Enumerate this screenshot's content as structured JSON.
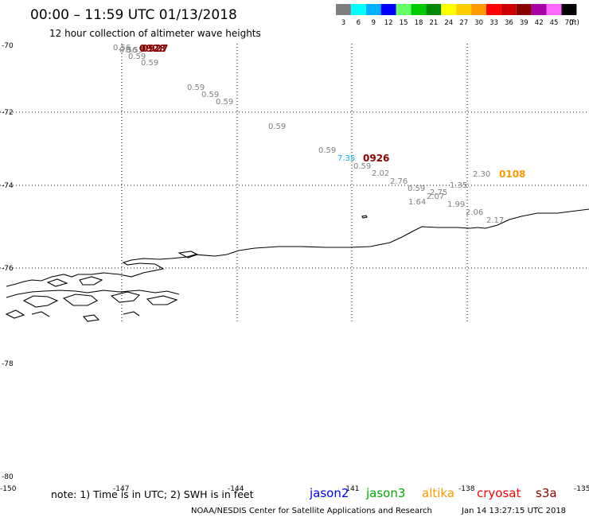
{
  "header": {
    "title": "00:00 – 11:59 UTC 01/13/2018",
    "subtitle": "12 hour collection of altimeter wave heights"
  },
  "color_scale": {
    "labels": [
      "3",
      "6",
      "9",
      "12",
      "15",
      "18",
      "21",
      "24",
      "27",
      "30",
      "33",
      "36",
      "39",
      "42",
      "45",
      "70"
    ],
    "unit": "(ft)",
    "colors": [
      "#7f7f7f",
      "#00ffff",
      "#00b0ff",
      "#0000ff",
      "#66ff66",
      "#00cc00",
      "#008800",
      "#ffff00",
      "#ffcc00",
      "#ff9900",
      "#ff0000",
      "#cc0000",
      "#880000",
      "#aa00aa",
      "#ff66ff",
      "#000000"
    ]
  },
  "map": {
    "lat_labels": [
      "-70",
      "-72",
      "-74",
      "-76",
      "-78",
      "-80"
    ],
    "lon_labels": [
      "-150",
      "-147",
      "-144",
      "-141",
      "-138",
      "-135"
    ]
  },
  "observations": [
    {
      "v": "0.56",
      "color": "#7f7f7f"
    },
    {
      "v": "0.56",
      "color": "#7f7f7f"
    },
    {
      "v": "0.55",
      "color": "#7f7f7f"
    },
    {
      "v": "0.59",
      "color": "#7f7f7f"
    },
    {
      "v": "0.59",
      "color": "#7f7f7f"
    },
    {
      "v": "0.59",
      "color": "#7f7f7f"
    },
    {
      "v": "0.59",
      "color": "#7f7f7f"
    },
    {
      "v": "0.59",
      "color": "#7f7f7f"
    },
    {
      "v": "0.59",
      "color": "#7f7f7f"
    },
    {
      "v": "0.59",
      "color": "#7f7f7f"
    },
    {
      "v": "7.35",
      "color": "#00b0ff"
    },
    {
      "v": "0.59",
      "color": "#7f7f7f"
    },
    {
      "v": "2.02",
      "color": "#7f7f7f"
    },
    {
      "v": "2.76",
      "color": "#7f7f7f"
    },
    {
      "v": "0.59",
      "color": "#7f7f7f"
    },
    {
      "v": "2.75",
      "color": "#7f7f7f"
    },
    {
      "v": "2.07",
      "color": "#7f7f7f"
    },
    {
      "v": "1.35",
      "color": "#7f7f7f"
    },
    {
      "v": "1.64",
      "color": "#7f7f7f"
    },
    {
      "v": "1.99",
      "color": "#7f7f7f"
    },
    {
      "v": "2.30",
      "color": "#7f7f7f"
    },
    {
      "v": "2.06",
      "color": "#7f7f7f"
    },
    {
      "v": "2.17",
      "color": "#7f7f7f"
    }
  ],
  "time_labels": [
    {
      "v": "0928",
      "color": "#880000"
    },
    {
      "v": "0927",
      "color": "#880000"
    },
    {
      "v": "0926",
      "color": "#880000"
    },
    {
      "v": "0108",
      "color": "#ff9900"
    }
  ],
  "footer": {
    "note": "note: 1) Time is in UTC; 2) SWH is in feet",
    "satellites": [
      {
        "name": "jason2",
        "color": "#0000ff"
      },
      {
        "name": "jason3",
        "color": "#00aa00"
      },
      {
        "name": "altika",
        "color": "#ff9900"
      },
      {
        "name": "cryosat",
        "color": "#ff0000"
      },
      {
        "name": "s3a",
        "color": "#880000"
      }
    ],
    "credit": "NOAA/NESDIS Center for Satellite Applications and Research",
    "timestamp": "Jan 14 13:27:15 UTC 2018"
  }
}
